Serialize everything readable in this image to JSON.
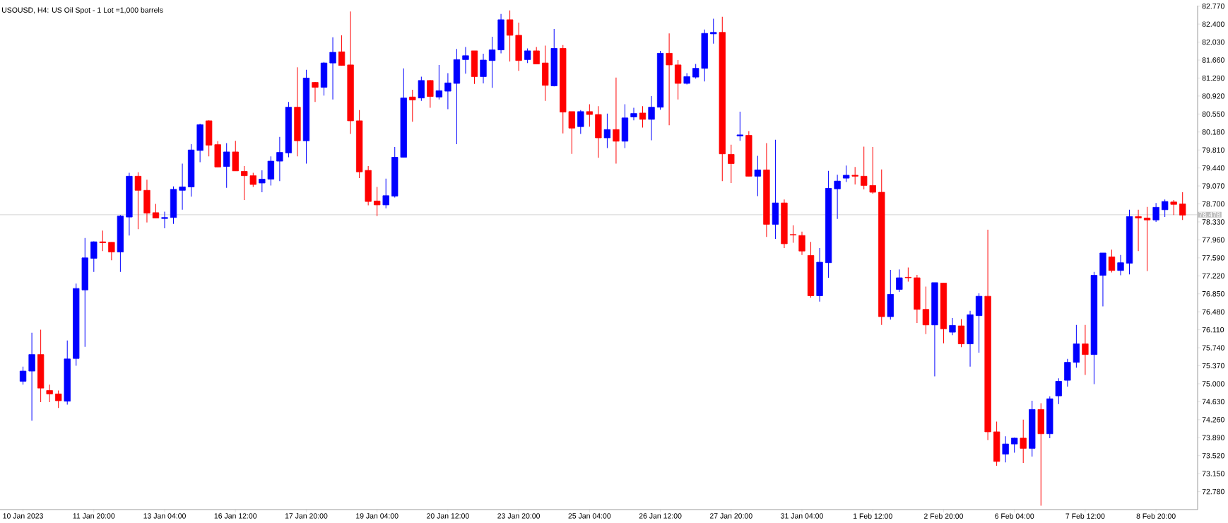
{
  "chart_data": {
    "type": "candlestick",
    "title": "USOUSD, H4:  US Oil Spot - 1 Lot =1,000 barrels",
    "categories": [
      "10 Jan 2023",
      null,
      null,
      null,
      null,
      null,
      null,
      null,
      "11 Jan 20:00",
      null,
      null,
      null,
      null,
      null,
      null,
      null,
      "13 Jan 04:00",
      null,
      null,
      null,
      null,
      null,
      null,
      null,
      "16 Jan 12:00",
      null,
      null,
      null,
      null,
      null,
      null,
      null,
      "17 Jan 20:00",
      null,
      null,
      null,
      null,
      null,
      null,
      null,
      "19 Jan 04:00",
      null,
      null,
      null,
      null,
      null,
      null,
      null,
      "20 Jan 12:00",
      null,
      null,
      null,
      null,
      null,
      null,
      null,
      "23 Jan 20:00",
      null,
      null,
      null,
      null,
      null,
      null,
      null,
      "25 Jan 04:00",
      null,
      null,
      null,
      null,
      null,
      null,
      null,
      "26 Jan 12:00",
      null,
      null,
      null,
      null,
      null,
      null,
      null,
      "27 Jan 20:00",
      null,
      null,
      null,
      null,
      null,
      null,
      null,
      "31 Jan 04:00",
      null,
      null,
      null,
      null,
      null,
      null,
      null,
      "1 Feb 12:00",
      null,
      null,
      null,
      null,
      null,
      null,
      null,
      "2 Feb 20:00",
      null,
      null,
      null,
      null,
      null,
      null,
      null,
      "6 Feb 04:00",
      null,
      null,
      null,
      null,
      null,
      null,
      null,
      "7 Feb 12:00",
      null,
      null,
      null,
      null,
      null,
      null,
      null,
      "8 Feb 20:00",
      null,
      null,
      null
    ],
    "ohlc": [
      [
        75.05,
        75.35,
        74.98,
        75.26
      ],
      [
        75.26,
        76.05,
        74.24,
        75.6
      ],
      [
        75.6,
        76.11,
        74.62,
        74.91
      ],
      [
        74.86,
        74.98,
        74.62,
        74.79
      ],
      [
        74.79,
        74.86,
        74.5,
        74.65
      ],
      [
        74.64,
        75.89,
        74.57,
        75.51
      ],
      [
        75.52,
        77.06,
        75.37,
        76.96
      ],
      [
        76.93,
        78.0,
        75.76,
        77.59
      ],
      [
        77.58,
        77.93,
        77.3,
        77.92
      ],
      [
        77.92,
        78.15,
        77.73,
        77.9
      ],
      [
        77.91,
        77.91,
        77.54,
        77.71
      ],
      [
        77.71,
        78.47,
        77.3,
        78.45
      ],
      [
        78.43,
        79.34,
        78.05,
        79.27
      ],
      [
        79.27,
        79.35,
        78.18,
        78.98
      ],
      [
        78.98,
        79.2,
        78.32,
        78.51
      ],
      [
        78.52,
        78.7,
        78.41,
        78.41
      ],
      [
        78.4,
        78.54,
        78.2,
        78.42
      ],
      [
        78.42,
        79.06,
        78.29,
        79.0
      ],
      [
        78.98,
        79.53,
        78.58,
        79.05
      ],
      [
        79.05,
        79.93,
        78.85,
        79.81
      ],
      [
        79.8,
        80.35,
        79.56,
        80.33
      ],
      [
        80.41,
        80.42,
        79.68,
        79.91
      ],
      [
        79.92,
        79.99,
        79.46,
        79.46
      ],
      [
        79.47,
        79.95,
        79.03,
        79.77
      ],
      [
        79.77,
        80.0,
        79.38,
        79.38
      ],
      [
        79.37,
        79.48,
        78.78,
        79.28
      ],
      [
        79.28,
        79.34,
        79.05,
        79.1
      ],
      [
        79.13,
        79.39,
        78.94,
        79.21
      ],
      [
        79.21,
        79.68,
        79.08,
        79.58
      ],
      [
        79.58,
        80.08,
        79.17,
        79.76
      ],
      [
        79.75,
        80.8,
        79.66,
        80.69
      ],
      [
        80.69,
        81.51,
        79.68,
        80.0
      ],
      [
        80.0,
        81.46,
        79.53,
        81.29
      ],
      [
        81.2,
        81.21,
        80.8,
        81.1
      ],
      [
        81.1,
        81.62,
        80.93,
        81.6
      ],
      [
        81.6,
        82.13,
        80.85,
        81.82
      ],
      [
        81.83,
        82.17,
        81.55,
        81.55
      ],
      [
        81.56,
        82.66,
        80.14,
        80.41
      ],
      [
        80.41,
        80.63,
        79.23,
        79.36
      ],
      [
        79.39,
        79.48,
        78.67,
        78.75
      ],
      [
        78.76,
        79.05,
        78.45,
        78.68
      ],
      [
        78.68,
        79.22,
        78.61,
        78.87
      ],
      [
        78.86,
        79.87,
        78.83,
        79.66
      ],
      [
        79.66,
        81.49,
        79.66,
        80.88
      ],
      [
        80.9,
        81.05,
        80.39,
        80.84
      ],
      [
        80.88,
        81.32,
        80.82,
        81.24
      ],
      [
        81.24,
        81.25,
        80.68,
        80.91
      ],
      [
        80.9,
        81.56,
        80.85,
        81.03
      ],
      [
        81.02,
        81.39,
        80.65,
        81.19
      ],
      [
        81.18,
        81.89,
        79.93,
        81.67
      ],
      [
        81.67,
        81.93,
        81.38,
        81.75
      ],
      [
        81.85,
        81.85,
        81.17,
        81.32
      ],
      [
        81.32,
        81.79,
        81.18,
        81.66
      ],
      [
        81.65,
        82.14,
        81.09,
        81.87
      ],
      [
        81.87,
        82.61,
        81.8,
        82.49
      ],
      [
        82.49,
        82.68,
        81.63,
        82.17
      ],
      [
        82.17,
        82.43,
        81.44,
        81.65
      ],
      [
        81.67,
        81.9,
        81.6,
        81.85
      ],
      [
        81.85,
        81.93,
        81.58,
        81.58
      ],
      [
        81.6,
        81.96,
        80.82,
        81.14
      ],
      [
        81.13,
        82.3,
        81.12,
        81.9
      ],
      [
        81.9,
        81.97,
        80.15,
        80.59
      ],
      [
        80.6,
        80.6,
        79.73,
        80.26
      ],
      [
        80.29,
        80.63,
        80.14,
        80.6
      ],
      [
        80.6,
        80.75,
        80.29,
        80.54
      ],
      [
        80.54,
        80.71,
        79.65,
        80.06
      ],
      [
        80.06,
        80.56,
        79.85,
        80.23
      ],
      [
        80.23,
        81.3,
        79.53,
        79.99
      ],
      [
        79.99,
        80.75,
        79.85,
        80.47
      ],
      [
        80.49,
        80.68,
        80.42,
        80.56
      ],
      [
        80.57,
        80.71,
        80.27,
        80.44
      ],
      [
        80.44,
        80.92,
        80.01,
        80.69
      ],
      [
        80.69,
        81.85,
        80.64,
        81.8
      ],
      [
        81.8,
        82.21,
        80.32,
        81.56
      ],
      [
        81.56,
        81.66,
        80.85,
        81.18
      ],
      [
        81.18,
        81.39,
        81.16,
        81.32
      ],
      [
        81.31,
        81.58,
        81.28,
        81.49
      ],
      [
        81.49,
        82.29,
        81.22,
        82.21
      ],
      [
        82.2,
        82.51,
        82.0,
        82.23
      ],
      [
        82.23,
        82.55,
        79.17,
        79.73
      ],
      [
        79.72,
        79.92,
        79.13,
        79.53
      ],
      [
        80.1,
        80.6,
        80.0,
        80.12
      ],
      [
        80.11,
        80.2,
        79.27,
        79.27
      ],
      [
        79.27,
        79.69,
        78.86,
        79.4
      ],
      [
        79.4,
        79.95,
        78.02,
        78.28
      ],
      [
        78.28,
        80.02,
        77.98,
        78.72
      ],
      [
        78.72,
        78.79,
        77.79,
        77.88
      ],
      [
        78.07,
        78.26,
        77.9,
        78.06
      ],
      [
        78.05,
        78.13,
        77.65,
        77.73
      ],
      [
        77.64,
        77.92,
        76.77,
        76.81
      ],
      [
        76.81,
        77.79,
        76.69,
        77.5
      ],
      [
        77.49,
        79.38,
        77.18,
        79.02
      ],
      [
        79.01,
        79.3,
        78.39,
        79.17
      ],
      [
        79.23,
        79.49,
        79.15,
        79.29
      ],
      [
        79.29,
        79.46,
        79.1,
        79.27
      ],
      [
        79.27,
        79.88,
        79.0,
        79.08
      ],
      [
        79.08,
        79.87,
        78.91,
        78.94
      ],
      [
        78.94,
        79.41,
        76.21,
        76.38
      ],
      [
        76.38,
        77.34,
        76.32,
        76.84
      ],
      [
        76.94,
        77.35,
        76.89,
        77.18
      ],
      [
        77.19,
        77.39,
        77.1,
        77.18
      ],
      [
        77.18,
        77.24,
        76.25,
        76.53
      ],
      [
        76.53,
        77.0,
        76.02,
        76.21
      ],
      [
        76.21,
        77.08,
        75.15,
        77.08
      ],
      [
        77.07,
        77.07,
        75.83,
        76.13
      ],
      [
        76.06,
        76.35,
        76.0,
        76.2
      ],
      [
        76.19,
        76.33,
        75.75,
        75.82
      ],
      [
        75.82,
        76.5,
        75.35,
        76.42
      ],
      [
        76.4,
        76.86,
        75.64,
        76.8
      ],
      [
        76.8,
        78.17,
        73.84,
        74.01
      ],
      [
        74.01,
        74.22,
        73.31,
        73.4
      ],
      [
        73.55,
        73.92,
        73.38,
        73.76
      ],
      [
        73.76,
        73.89,
        73.58,
        73.88
      ],
      [
        73.88,
        74.26,
        73.37,
        73.67
      ],
      [
        73.67,
        74.65,
        73.5,
        74.47
      ],
      [
        74.47,
        74.6,
        72.49,
        73.97
      ],
      [
        73.97,
        74.74,
        73.88,
        74.69
      ],
      [
        74.75,
        75.11,
        74.58,
        75.05
      ],
      [
        75.07,
        75.51,
        74.94,
        75.44
      ],
      [
        75.44,
        76.21,
        75.33,
        75.82
      ],
      [
        75.82,
        76.21,
        75.18,
        75.6
      ],
      [
        75.6,
        77.3,
        74.99,
        77.23
      ],
      [
        77.23,
        77.69,
        76.59,
        77.69
      ],
      [
        77.61,
        77.76,
        77.29,
        77.33
      ],
      [
        77.33,
        77.65,
        77.23,
        77.49
      ],
      [
        77.48,
        78.58,
        77.25,
        78.44
      ],
      [
        78.44,
        78.58,
        77.73,
        78.41
      ],
      [
        78.41,
        78.64,
        77.32,
        78.37
      ],
      [
        78.37,
        78.72,
        78.33,
        78.63
      ],
      [
        78.58,
        78.79,
        78.43,
        78.75
      ],
      [
        78.74,
        78.78,
        78.47,
        78.69
      ],
      [
        78.7,
        78.94,
        78.37,
        78.47
      ]
    ],
    "colors": [
      "#0000ff",
      "#0000ff",
      "#ff0000",
      "#ff0000",
      "#ff0000",
      "#0000ff",
      "#0000ff",
      "#0000ff",
      "#0000ff",
      "#ff0000",
      "#ff0000",
      "#0000ff",
      "#0000ff",
      "#ff0000",
      "#ff0000",
      "#ff0000",
      "#0000ff",
      "#0000ff",
      "#0000ff",
      "#0000ff",
      "#0000ff",
      "#ff0000",
      "#ff0000",
      "#0000ff",
      "#ff0000",
      "#ff0000",
      "#ff0000",
      "#0000ff",
      "#0000ff",
      "#0000ff",
      "#0000ff",
      "#ff0000",
      "#0000ff",
      "#ff0000",
      "#0000ff",
      "#0000ff",
      "#ff0000",
      "#ff0000",
      "#ff0000",
      "#ff0000",
      "#ff0000",
      "#0000ff",
      "#0000ff",
      "#0000ff",
      "#ff0000",
      "#0000ff",
      "#ff0000",
      "#0000ff",
      "#0000ff",
      "#0000ff",
      "#0000ff",
      "#ff0000",
      "#0000ff",
      "#0000ff",
      "#0000ff",
      "#ff0000",
      "#ff0000",
      "#0000ff",
      "#ff0000",
      "#ff0000",
      "#0000ff",
      "#ff0000",
      "#ff0000",
      "#0000ff",
      "#ff0000",
      "#ff0000",
      "#0000ff",
      "#ff0000",
      "#0000ff",
      "#0000ff",
      "#ff0000",
      "#0000ff",
      "#0000ff",
      "#ff0000",
      "#ff0000",
      "#0000ff",
      "#0000ff",
      "#0000ff",
      "#0000ff",
      "#ff0000",
      "#ff0000",
      "#0000ff",
      "#ff0000",
      "#0000ff",
      "#ff0000",
      "#0000ff",
      "#ff0000",
      "#ff0000",
      "#ff0000",
      "#ff0000",
      "#0000ff",
      "#0000ff",
      "#0000ff",
      "#0000ff",
      "#ff0000",
      "#ff0000",
      "#ff0000",
      "#ff0000",
      "#0000ff",
      "#0000ff",
      "#ff0000",
      "#ff0000",
      "#ff0000",
      "#0000ff",
      "#ff0000",
      "#0000ff",
      "#ff0000",
      "#0000ff",
      "#0000ff",
      "#ff0000",
      "#ff0000",
      "#0000ff",
      "#0000ff",
      "#ff0000",
      "#0000ff",
      "#ff0000",
      "#0000ff",
      "#0000ff",
      "#0000ff",
      "#0000ff",
      "#ff0000",
      "#0000ff",
      "#0000ff",
      "#ff0000",
      "#0000ff",
      "#0000ff",
      "#ff0000",
      "#ff0000",
      "#0000ff",
      "#0000ff",
      "#ff0000",
      "#ff0000"
    ],
    "ylim": [
      72.41,
      82.78
    ],
    "yticks": [
      {
        "value": 72.78,
        "label": "72.780"
      },
      {
        "value": 73.15,
        "label": "73.150"
      },
      {
        "value": 73.52,
        "label": "73.520"
      },
      {
        "value": 73.89,
        "label": "73.890"
      },
      {
        "value": 74.26,
        "label": "74.260"
      },
      {
        "value": 74.63,
        "label": "74.630"
      },
      {
        "value": 75.0,
        "label": "75.000"
      },
      {
        "value": 75.37,
        "label": "75.370"
      },
      {
        "value": 75.74,
        "label": "75.740"
      },
      {
        "value": 76.11,
        "label": "76.110"
      },
      {
        "value": 76.48,
        "label": "76.480"
      },
      {
        "value": 76.85,
        "label": "76.850"
      },
      {
        "value": 77.22,
        "label": "77.220"
      },
      {
        "value": 77.59,
        "label": "77.590"
      },
      {
        "value": 77.96,
        "label": "77.960"
      },
      {
        "value": 78.33,
        "label": "78.330"
      },
      {
        "value": 78.7,
        "label": "78.700"
      },
      {
        "value": 79.07,
        "label": "79.070"
      },
      {
        "value": 79.44,
        "label": "79.440"
      },
      {
        "value": 79.81,
        "label": "79.810"
      },
      {
        "value": 80.18,
        "label": "80.180"
      },
      {
        "value": 80.55,
        "label": "80.550"
      },
      {
        "value": 80.92,
        "label": "80.920"
      },
      {
        "value": 81.29,
        "label": "81.290"
      },
      {
        "value": 81.66,
        "label": "81.660"
      },
      {
        "value": 82.03,
        "label": "82.030"
      },
      {
        "value": 82.4,
        "label": "82.400"
      },
      {
        "value": 82.77,
        "label": "82.770"
      }
    ],
    "ref_lines": [
      {
        "axis": "y",
        "value": 78.478,
        "label": "78.478",
        "color": "#c0c0c0"
      }
    ]
  }
}
